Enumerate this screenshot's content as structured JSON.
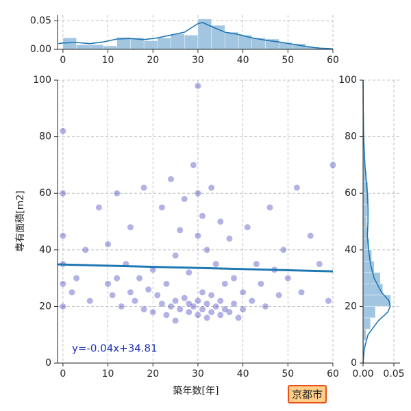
{
  "chart_data": [
    {
      "type": "scatter",
      "x_label": "築年数[年]",
      "y_label": "専有面積[m2]",
      "x": [
        0,
        0,
        0,
        0,
        0,
        0,
        2,
        3,
        5,
        6,
        8,
        10,
        10,
        11,
        12,
        12,
        13,
        14,
        15,
        15,
        16,
        17,
        18,
        18,
        19,
        20,
        20,
        21,
        22,
        22,
        23,
        23,
        24,
        24,
        25,
        25,
        25,
        26,
        26,
        27,
        27,
        28,
        28,
        28,
        29,
        29,
        30,
        30,
        30,
        30,
        30,
        31,
        31,
        31,
        32,
        32,
        32,
        33,
        33,
        33,
        34,
        34,
        35,
        35,
        35,
        36,
        36,
        37,
        37,
        38,
        38,
        39,
        40,
        40,
        41,
        42,
        43,
        44,
        45,
        46,
        47,
        48,
        49,
        50,
        52,
        53,
        55,
        57,
        59,
        60
      ],
      "values": [
        20,
        28,
        35,
        45,
        60,
        82,
        25,
        30,
        40,
        22,
        55,
        28,
        42,
        24,
        30,
        60,
        20,
        35,
        25,
        48,
        22,
        30,
        62,
        19,
        26,
        18,
        33,
        24,
        21,
        55,
        17,
        28,
        20,
        65,
        22,
        38,
        15,
        19,
        47,
        23,
        58,
        18,
        32,
        21,
        20,
        70,
        17,
        22,
        45,
        60,
        98,
        19,
        25,
        52,
        16,
        21,
        40,
        18,
        24,
        62,
        20,
        35,
        17,
        22,
        50,
        19,
        28,
        18,
        44,
        21,
        30,
        16,
        19,
        25,
        48,
        22,
        35,
        28,
        20,
        55,
        33,
        24,
        40,
        30,
        62,
        25,
        45,
        35,
        22,
        70
      ],
      "color": "#0000aa",
      "xlim": [
        -1.2,
        60
      ],
      "ylim": [
        0,
        100
      ],
      "xticks": [
        0,
        10,
        20,
        30,
        40,
        50,
        60
      ],
      "yticks": [
        0,
        20,
        40,
        60,
        80,
        100
      ],
      "grid": true,
      "regression": {
        "slope": -0.04,
        "intercept": 34.81,
        "label": "y=-0.04x+34.81",
        "color": "#1f77b4"
      },
      "badge": "京都市"
    },
    {
      "type": "histogram",
      "orientation": "vertical",
      "bins": [
        0,
        3,
        6,
        9,
        12,
        15,
        18,
        21,
        24,
        27,
        30,
        33,
        36,
        39,
        42,
        45,
        48,
        51,
        54,
        57,
        60
      ],
      "values": [
        0.02,
        0.008,
        0.008,
        0.006,
        0.021,
        0.02,
        0.015,
        0.02,
        0.027,
        0.025,
        0.053,
        0.042,
        0.03,
        0.025,
        0.02,
        0.018,
        0.012,
        0.01,
        0.004,
        0.002
      ],
      "color": "#a3c6e0",
      "kde": {
        "x": [
          -1,
          0,
          3,
          6,
          9,
          12,
          15,
          18,
          21,
          24,
          27,
          30,
          31,
          33,
          36,
          39,
          42,
          45,
          48,
          51,
          54,
          57,
          60
        ],
        "values": [
          0.01,
          0.011,
          0.012,
          0.01,
          0.013,
          0.018,
          0.019,
          0.017,
          0.02,
          0.025,
          0.03,
          0.045,
          0.047,
          0.04,
          0.03,
          0.026,
          0.02,
          0.016,
          0.013,
          0.009,
          0.005,
          0.002,
          0.001
        ],
        "color": "#1f77b4"
      },
      "xlim": [
        -1.2,
        60
      ],
      "ylim": [
        0,
        0.06
      ],
      "xticks": [
        0,
        10,
        20,
        30,
        40,
        50,
        60
      ],
      "yticks": [
        {
          "value": 0,
          "label": "0.00"
        },
        {
          "value": 0.05,
          "label": "0.05"
        }
      ],
      "grid": true
    },
    {
      "type": "histogram",
      "orientation": "horizontal",
      "bins": [
        0,
        4,
        8,
        12,
        16,
        20,
        24,
        28,
        32,
        36,
        40,
        44,
        48,
        52,
        56,
        60,
        64,
        68,
        72,
        76,
        80,
        84,
        88,
        92,
        96,
        100
      ],
      "values": [
        0,
        0.002,
        0.005,
        0.012,
        0.02,
        0.045,
        0.032,
        0.028,
        0.018,
        0.014,
        0.01,
        0.007,
        0.006,
        0.007,
        0.009,
        0.008,
        0.006,
        0.004,
        0.003,
        0.002,
        0.002,
        0.001,
        0.001,
        0.001,
        0.0005
      ],
      "color": "#a3c6e0",
      "kde": {
        "y": [
          0,
          5,
          10,
          15,
          18,
          20,
          22,
          25,
          30,
          35,
          40,
          45,
          50,
          55,
          60,
          65,
          70,
          80,
          90,
          100
        ],
        "values": [
          0,
          0.002,
          0.008,
          0.025,
          0.04,
          0.044,
          0.042,
          0.03,
          0.018,
          0.012,
          0.009,
          0.007,
          0.008,
          0.008,
          0.007,
          0.005,
          0.003,
          0.001,
          0.0003,
          0.0001
        ],
        "color": "#1f77b4"
      },
      "xlim": [
        0,
        0.06
      ],
      "ylim": [
        0,
        100
      ],
      "xticks": [
        {
          "value": 0,
          "label": "0.00"
        },
        {
          "value": 0.05,
          "label": "0.05"
        }
      ],
      "yticks": [
        0,
        20,
        40,
        60,
        80,
        100
      ],
      "grid": true
    }
  ]
}
